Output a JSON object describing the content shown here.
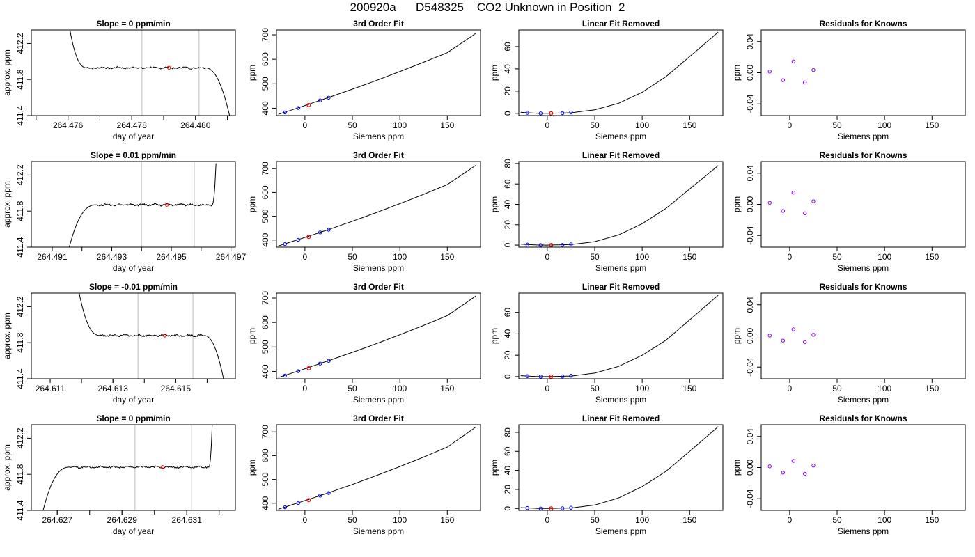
{
  "title": "200920a      D548325    CO2 Unknown in Position  2",
  "labels": {
    "time_xlabel": "day of year",
    "time_ylabel": "approx. ppm",
    "fit_title": "3rd Order Fit",
    "fit_xlabel": "Siemens ppm",
    "fit_ylabel": "ppm",
    "linear_title": "Linear Fit Removed",
    "linear_xlabel": "Siemens ppm",
    "linear_ylabel": "ppm",
    "resid_title": "Residuals for Knowns",
    "resid_xlabel": "Siemens ppm",
    "resid_ylabel": "ppm"
  },
  "colors": {
    "curve": "#000000",
    "known_point": "#0000ff",
    "unknown_point": "#ff0000",
    "residual_point": "#8800ff",
    "window_line": "#c8c8c8"
  },
  "chart_data": [
    {
      "type": "line",
      "role": "time_series",
      "title": "Slope =  0  ppm/min",
      "xlabel": "day of year",
      "ylabel": "approx. ppm",
      "xlim": [
        264.47485,
        264.48125
      ],
      "ylim": [
        411.4,
        412.35
      ],
      "xticks": [
        "264.476",
        "264.478",
        "264.480"
      ],
      "yticks": [
        "411.4",
        "411.8",
        "412.2"
      ],
      "x_start": 264.4749,
      "x_end": 264.48115,
      "rise": {
        "x0": 264.47595,
        "x1": 264.4766,
        "y_top": 412.6
      },
      "drop": {
        "x0": 264.4803,
        "x1": 264.4811,
        "y_bottom": 411.35
      },
      "plateau": 411.93,
      "window": [
        264.47832,
        264.48011
      ],
      "mean_point": [
        264.47917,
        411.93
      ]
    },
    {
      "type": "line",
      "role": "time_series",
      "title": "Slope =  0.01  ppm/min",
      "xlabel": "day of year",
      "ylabel": "approx. ppm",
      "xlim": [
        264.4903,
        264.49715
      ],
      "ylim": [
        411.4,
        412.35
      ],
      "xticks": [
        "264.491",
        "264.493",
        "264.495",
        "264.497"
      ],
      "yticks": [
        "411.4",
        "411.8",
        "412.2"
      ],
      "x_start": 264.4915,
      "x_end": 264.4965,
      "rise": {
        "x0": 264.4915,
        "x1": 264.4925,
        "y_top": 411.3,
        "invert": true
      },
      "drop": {
        "x0": 264.49637,
        "x1": 264.49652,
        "y_bottom": 412.5,
        "invert": true
      },
      "plateau": 411.87,
      "window": [
        264.494,
        264.49577
      ],
      "mean_point": [
        264.49485,
        411.87
      ]
    },
    {
      "type": "line",
      "role": "time_series",
      "title": "Slope =  -0.01  ppm/min",
      "xlabel": "day of year",
      "ylabel": "approx. ppm",
      "xlim": [
        264.6104,
        264.6169
      ],
      "ylim": [
        411.4,
        412.35
      ],
      "xticks": [
        "264.611",
        "264.613",
        "264.615"
      ],
      "yticks": [
        "411.4",
        "411.8",
        "412.2"
      ],
      "x_start": 264.6117,
      "x_end": 264.6166,
      "rise": {
        "x0": 264.6118,
        "x1": 264.6126,
        "y_top": 412.6
      },
      "drop": {
        "x0": 264.6159,
        "x1": 264.61655,
        "y_bottom": 411.35
      },
      "plateau": 411.88,
      "window": [
        264.6138,
        264.61555
      ],
      "mean_point": [
        264.61465,
        411.88
      ]
    },
    {
      "type": "line",
      "role": "time_series",
      "title": "Slope =  0  ppm/min",
      "xlabel": "day of year",
      "ylabel": "approx. ppm",
      "xlim": [
        264.6262,
        264.6325
      ],
      "ylim": [
        411.4,
        412.35
      ],
      "xticks": [
        "264.627",
        "264.629",
        "264.631"
      ],
      "yticks": [
        "411.4",
        "411.8",
        "412.2"
      ],
      "x_start": 264.6265,
      "x_end": 264.6318,
      "rise": {
        "x0": 264.6265,
        "x1": 264.6274,
        "y_top": 411.3,
        "invert": true
      },
      "drop": {
        "x0": 264.63168,
        "x1": 264.6318,
        "y_bottom": 412.5,
        "invert": true
      },
      "plateau": 411.88,
      "window": [
        264.6294,
        264.63115
      ],
      "mean_point": [
        264.63025,
        411.88
      ]
    },
    {
      "type": "line",
      "role": "cubic_fit",
      "title": "3rd Order Fit",
      "xlabel": "Siemens ppm",
      "ylabel": "ppm",
      "xlim": [
        -30,
        185
      ],
      "ylim": [
        370,
        720
      ],
      "xticks": [
        0,
        50,
        100,
        150
      ],
      "yticks": [
        400,
        500,
        600,
        700
      ],
      "curve": [
        [
          -28,
          375
        ],
        [
          -10,
          398
        ],
        [
          0,
          411
        ],
        [
          25,
          444
        ],
        [
          50,
          478
        ],
        [
          75,
          513
        ],
        [
          100,
          550
        ],
        [
          125,
          588
        ],
        [
          150,
          627
        ],
        [
          180,
          706
        ]
      ],
      "knowns": [
        [
          -21,
          383
        ],
        [
          -7,
          401
        ],
        [
          16,
          432
        ],
        [
          25,
          443
        ]
      ],
      "unknown": [
        [
          4,
          413
        ]
      ]
    },
    {
      "type": "line",
      "role": "cubic_fit",
      "title": "3rd Order Fit",
      "xlabel": "Siemens ppm",
      "ylabel": "ppm",
      "xlim": [
        -30,
        185
      ],
      "ylim": [
        370,
        730
      ],
      "xticks": [
        0,
        50,
        100,
        150
      ],
      "yticks": [
        400,
        500,
        600,
        700
      ],
      "curve": [
        [
          -28,
          375
        ],
        [
          -10,
          398
        ],
        [
          0,
          411
        ],
        [
          25,
          444
        ],
        [
          50,
          479
        ],
        [
          75,
          515
        ],
        [
          100,
          553
        ],
        [
          125,
          592
        ],
        [
          150,
          633
        ],
        [
          180,
          714
        ]
      ],
      "knowns": [
        [
          -21,
          383
        ],
        [
          -7,
          401
        ],
        [
          16,
          432
        ],
        [
          25,
          443
        ]
      ],
      "unknown": [
        [
          4,
          413
        ]
      ]
    },
    {
      "type": "line",
      "role": "cubic_fit",
      "title": "3rd Order Fit",
      "xlabel": "Siemens ppm",
      "ylabel": "ppm",
      "xlim": [
        -30,
        185
      ],
      "ylim": [
        370,
        720
      ],
      "xticks": [
        0,
        50,
        100,
        150
      ],
      "yticks": [
        400,
        500,
        600,
        700
      ],
      "curve": [
        [
          -28,
          375
        ],
        [
          -10,
          398
        ],
        [
          0,
          411
        ],
        [
          25,
          444
        ],
        [
          50,
          478
        ],
        [
          75,
          513
        ],
        [
          100,
          550
        ],
        [
          125,
          588
        ],
        [
          150,
          628
        ],
        [
          180,
          708
        ]
      ],
      "knowns": [
        [
          -21,
          383
        ],
        [
          -7,
          401
        ],
        [
          16,
          432
        ],
        [
          25,
          443
        ]
      ],
      "unknown": [
        [
          4,
          413
        ]
      ]
    },
    {
      "type": "line",
      "role": "cubic_fit",
      "title": "3rd Order Fit",
      "xlabel": "Siemens ppm",
      "ylabel": "ppm",
      "xlim": [
        -30,
        185
      ],
      "ylim": [
        370,
        730
      ],
      "xticks": [
        0,
        50,
        100,
        150
      ],
      "yticks": [
        400,
        500,
        600,
        700
      ],
      "curve": [
        [
          -28,
          375
        ],
        [
          -10,
          398
        ],
        [
          0,
          411
        ],
        [
          25,
          444
        ],
        [
          50,
          479
        ],
        [
          75,
          516
        ],
        [
          100,
          554
        ],
        [
          125,
          594
        ],
        [
          150,
          636
        ],
        [
          180,
          720
        ]
      ],
      "knowns": [
        [
          -21,
          383
        ],
        [
          -7,
          401
        ],
        [
          16,
          432
        ],
        [
          25,
          443
        ]
      ],
      "unknown": [
        [
          4,
          413
        ]
      ]
    },
    {
      "type": "line",
      "role": "linear_removed",
      "title": "Linear Fit Removed",
      "xlabel": "Siemens ppm",
      "ylabel": "ppm",
      "xlim": [
        -30,
        185
      ],
      "ylim": [
        -2,
        75
      ],
      "xticks": [
        0,
        50,
        100,
        150
      ],
      "yticks": [
        0,
        20,
        40,
        60
      ],
      "curve": [
        [
          -28,
          0.9
        ],
        [
          -10,
          0.05
        ],
        [
          0,
          0
        ],
        [
          25,
          0.5
        ],
        [
          50,
          3.2
        ],
        [
          75,
          9
        ],
        [
          100,
          19
        ],
        [
          125,
          33
        ],
        [
          150,
          51
        ],
        [
          180,
          73
        ]
      ],
      "knowns": [
        [
          -21,
          0.5
        ],
        [
          -7,
          0
        ],
        [
          16,
          0.2
        ],
        [
          25,
          0.8
        ]
      ],
      "unknown": [
        [
          4,
          0
        ]
      ]
    },
    {
      "type": "line",
      "role": "linear_removed",
      "title": "Linear Fit Removed",
      "xlabel": "Siemens ppm",
      "ylabel": "ppm",
      "xlim": [
        -30,
        185
      ],
      "ylim": [
        -2,
        82
      ],
      "xticks": [
        0,
        50,
        100,
        150
      ],
      "yticks": [
        0,
        20,
        40,
        60,
        80
      ],
      "curve": [
        [
          -28,
          0.9
        ],
        [
          -10,
          0.05
        ],
        [
          0,
          0
        ],
        [
          25,
          0.5
        ],
        [
          50,
          3.4
        ],
        [
          75,
          10
        ],
        [
          100,
          21
        ],
        [
          125,
          36
        ],
        [
          150,
          55
        ],
        [
          180,
          78
        ]
      ],
      "knowns": [
        [
          -21,
          0.5
        ],
        [
          -7,
          0
        ],
        [
          16,
          0.2
        ],
        [
          25,
          0.8
        ]
      ],
      "unknown": [
        [
          4,
          0
        ]
      ]
    },
    {
      "type": "line",
      "role": "linear_removed",
      "title": "Linear Fit Removed",
      "xlabel": "Siemens ppm",
      "ylabel": "ppm",
      "xlim": [
        -30,
        185
      ],
      "ylim": [
        -2,
        78
      ],
      "xticks": [
        0,
        50,
        100,
        150
      ],
      "yticks": [
        0,
        20,
        40,
        60
      ],
      "curve": [
        [
          -28,
          0.9
        ],
        [
          -10,
          0.05
        ],
        [
          0,
          0
        ],
        [
          25,
          0.5
        ],
        [
          50,
          3.3
        ],
        [
          75,
          9.5
        ],
        [
          100,
          20
        ],
        [
          125,
          34
        ],
        [
          150,
          53
        ],
        [
          180,
          76
        ]
      ],
      "knowns": [
        [
          -21,
          0.5
        ],
        [
          -7,
          0
        ],
        [
          16,
          0.2
        ],
        [
          25,
          0.8
        ]
      ],
      "unknown": [
        [
          4,
          0
        ]
      ]
    },
    {
      "type": "line",
      "role": "linear_removed",
      "title": "Linear Fit Removed",
      "xlabel": "Siemens ppm",
      "ylabel": "ppm",
      "xlim": [
        -30,
        185
      ],
      "ylim": [
        -2,
        88
      ],
      "xticks": [
        0,
        50,
        100,
        150
      ],
      "yticks": [
        0,
        20,
        40,
        60,
        80
      ],
      "curve": [
        [
          -28,
          0.9
        ],
        [
          -10,
          0.05
        ],
        [
          0,
          0
        ],
        [
          25,
          0.5
        ],
        [
          50,
          3.6
        ],
        [
          75,
          11
        ],
        [
          100,
          23
        ],
        [
          125,
          39
        ],
        [
          150,
          60
        ],
        [
          180,
          86
        ]
      ],
      "knowns": [
        [
          -21,
          0.5
        ],
        [
          -7,
          0
        ],
        [
          16,
          0.2
        ],
        [
          25,
          0.8
        ]
      ],
      "unknown": [
        [
          4,
          0
        ]
      ]
    },
    {
      "type": "scatter",
      "role": "residuals",
      "title": "Residuals for Knowns",
      "xlabel": "Siemens ppm",
      "ylabel": "ppm",
      "xlim": [
        -30,
        185
      ],
      "ylim": [
        -0.055,
        0.055
      ],
      "xticks": [
        0,
        50,
        100,
        150
      ],
      "yticks": [
        "-0.04",
        "0.00",
        "0.04"
      ],
      "points": [
        [
          -21,
          0.0015
        ],
        [
          -7,
          -0.0095
        ],
        [
          4,
          0.0145
        ],
        [
          16,
          -0.0125
        ],
        [
          25,
          0.0035
        ]
      ]
    },
    {
      "type": "scatter",
      "role": "residuals",
      "title": "Residuals for Knowns",
      "xlabel": "Siemens ppm",
      "ylabel": "ppm",
      "xlim": [
        -30,
        185
      ],
      "ylim": [
        -0.055,
        0.055
      ],
      "xticks": [
        0,
        50,
        100,
        150
      ],
      "yticks": [
        "-0.04",
        "0.00",
        "0.04"
      ],
      "points": [
        [
          -21,
          0.002
        ],
        [
          -7,
          -0.0085
        ],
        [
          4,
          0.015
        ],
        [
          16,
          -0.0115
        ],
        [
          25,
          0.004
        ]
      ]
    },
    {
      "type": "scatter",
      "role": "residuals",
      "title": "Residuals for Knowns",
      "xlabel": "Siemens ppm",
      "ylabel": "ppm",
      "xlim": [
        -30,
        185
      ],
      "ylim": [
        -0.055,
        0.055
      ],
      "xticks": [
        0,
        50,
        100,
        150
      ],
      "yticks": [
        "-0.04",
        "0.00",
        "0.04"
      ],
      "points": [
        [
          -21,
          0.0005
        ],
        [
          -7,
          -0.006
        ],
        [
          4,
          0.0085
        ],
        [
          16,
          -0.008
        ],
        [
          25,
          0.0015
        ]
      ]
    },
    {
      "type": "scatter",
      "role": "residuals",
      "title": "Residuals for Knowns",
      "xlabel": "Siemens ppm",
      "ylabel": "ppm",
      "xlim": [
        -30,
        185
      ],
      "ylim": [
        -0.055,
        0.055
      ],
      "xticks": [
        0,
        50,
        100,
        150
      ],
      "yticks": [
        "-0.04",
        "0.00",
        "0.04"
      ],
      "points": [
        [
          -21,
          0.0015
        ],
        [
          -7,
          -0.0065
        ],
        [
          4,
          0.0085
        ],
        [
          16,
          -0.008
        ],
        [
          25,
          0.0025
        ]
      ]
    }
  ]
}
